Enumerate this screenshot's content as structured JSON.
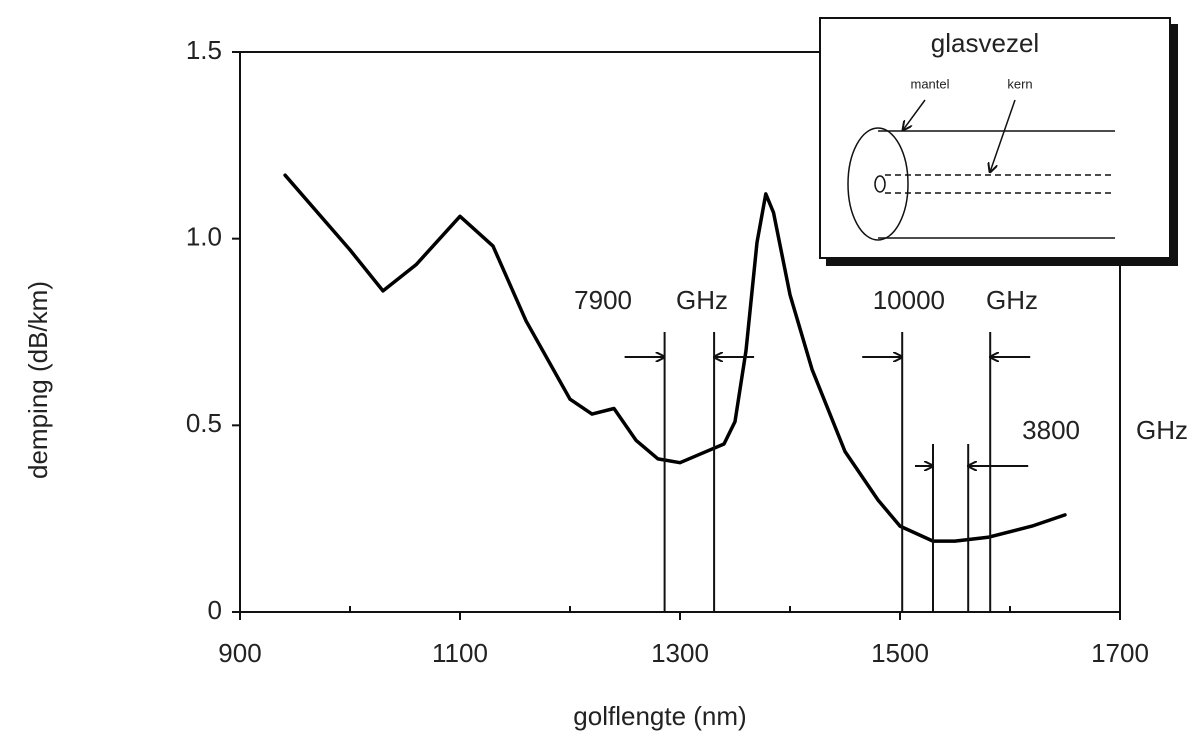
{
  "chart_data": {
    "type": "line",
    "xlabel": "golflengte   (nm)",
    "ylabel": "demping   (dB/km)",
    "x": [
      941,
      1000,
      1030,
      1060,
      1100,
      1130,
      1160,
      1200,
      1220,
      1240,
      1260,
      1280,
      1300,
      1320,
      1340,
      1350,
      1360,
      1370,
      1378,
      1385,
      1400,
      1420,
      1450,
      1480,
      1500,
      1530,
      1550,
      1580,
      1620,
      1650
    ],
    "values": [
      1.17,
      0.97,
      0.86,
      0.93,
      1.06,
      0.98,
      0.78,
      0.57,
      0.53,
      0.545,
      0.46,
      0.41,
      0.4,
      0.425,
      0.45,
      0.51,
      0.7,
      0.99,
      1.12,
      1.07,
      0.85,
      0.65,
      0.43,
      0.3,
      0.23,
      0.19,
      0.19,
      0.2,
      0.23,
      0.26
    ],
    "color": "#000000",
    "xlim": [
      900,
      1700
    ],
    "ylim": [
      0,
      1.5
    ],
    "xticks": [
      900,
      1100,
      1300,
      1500,
      1700
    ],
    "xminorticks": [
      1000,
      1200,
      1400,
      1600
    ],
    "yticks": [
      0,
      0.5,
      {
        "value": 1,
        "label": "1.0"
      },
      {
        "value": 1.5,
        "label": "1.5"
      }
    ],
    "bands": [
      {
        "label": "7900",
        "unit": "GHz",
        "x": [
          1286,
          1331
        ]
      },
      {
        "label": "10000",
        "unit": "GHz",
        "x": [
          1502,
          1582
        ]
      },
      {
        "label": "3800",
        "unit": "GHz",
        "x": [
          1530,
          1562
        ]
      }
    ],
    "inset": {
      "title": "glasvezel",
      "labels": [
        "mantel",
        "kern"
      ]
    }
  }
}
